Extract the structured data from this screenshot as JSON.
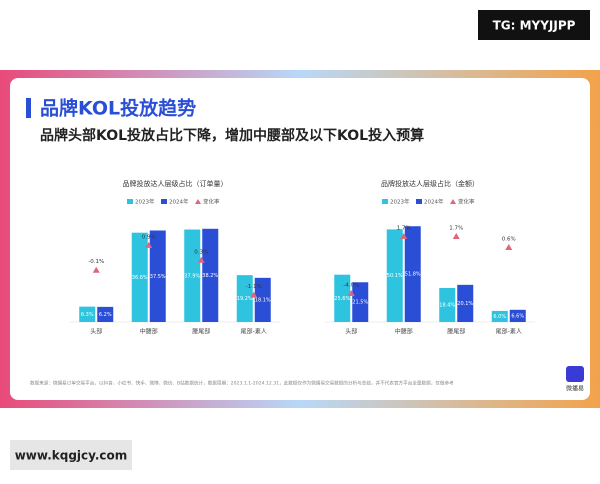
{
  "header": {
    "title": "品牌KOL投放趋势",
    "subtitle": "品牌头部KOL投放占比下降，增加中腰部及以下KOL投入预算",
    "source": "数据来源：微播易订单交易平台，以抖音、小红书、快手、微博、微信、B站数据统计，数据周期：2023.1.1-2024.12.31，此数据仅作为微播易交易数据的分析与总结，并不代表官方平台全量数据，仅做参考",
    "logo": "微播易",
    "badge": "TG: MYYJJPP",
    "site": "www.kqgjcy.com"
  },
  "chart_data": [
    {
      "type": "bar",
      "title": "品牌投放达人层级占比（订单量）",
      "categories": [
        "头部",
        "中腰部",
        "腰尾部",
        "尾部-素人"
      ],
      "ylim": [
        0,
        50
      ],
      "y2lim": [
        -2.2,
        2.7
      ],
      "series": [
        {
          "name": "2023年",
          "color": "#2ec4e0",
          "values": [
            6.3,
            36.6,
            37.9,
            19.2
          ],
          "value_labels": [
            "6.3%",
            "36.6%",
            "37.9%",
            "19.2%"
          ]
        },
        {
          "name": "2024年",
          "color": "#2a4fd6",
          "values": [
            6.2,
            37.5,
            38.2,
            18.1
          ],
          "value_labels": [
            "6.2%",
            "37.5%",
            "38.2%",
            "18.1%"
          ]
        },
        {
          "name": "变化率",
          "color": "#e0667a",
          "axis": "y2",
          "values": [
            -0.1,
            0.9,
            0.3,
            -1.1
          ],
          "value_labels": [
            "-0.1%",
            "0.9%",
            "0.3%",
            "-1.1%"
          ]
        }
      ]
    },
    {
      "type": "bar",
      "title": "品牌投放达人层级占比（金额）",
      "categories": [
        "头部",
        "中腰部",
        "腰尾部",
        "尾部-素人"
      ],
      "ylim": [
        0,
        66
      ],
      "y2lim": [
        -6.9,
        5.3
      ],
      "series": [
        {
          "name": "2023年",
          "color": "#2ec4e0",
          "values": [
            25.6,
            50.1,
            18.4,
            6.0
          ],
          "value_labels": [
            "25.6%",
            "50.1%",
            "18.4%",
            "6.0%"
          ]
        },
        {
          "name": "2024年",
          "color": "#2a4fd6",
          "values": [
            21.5,
            51.8,
            20.1,
            6.6
          ],
          "value_labels": [
            "21.5%",
            "51.8%",
            "20.1%",
            "6.6%"
          ]
        },
        {
          "name": "变化率",
          "color": "#e0667a",
          "axis": "y2",
          "values": [
            -4.0,
            1.7,
            1.7,
            0.6
          ],
          "value_labels": [
            "-4.0%",
            "1.7%",
            "1.7%",
            "0.6%"
          ]
        }
      ]
    }
  ]
}
